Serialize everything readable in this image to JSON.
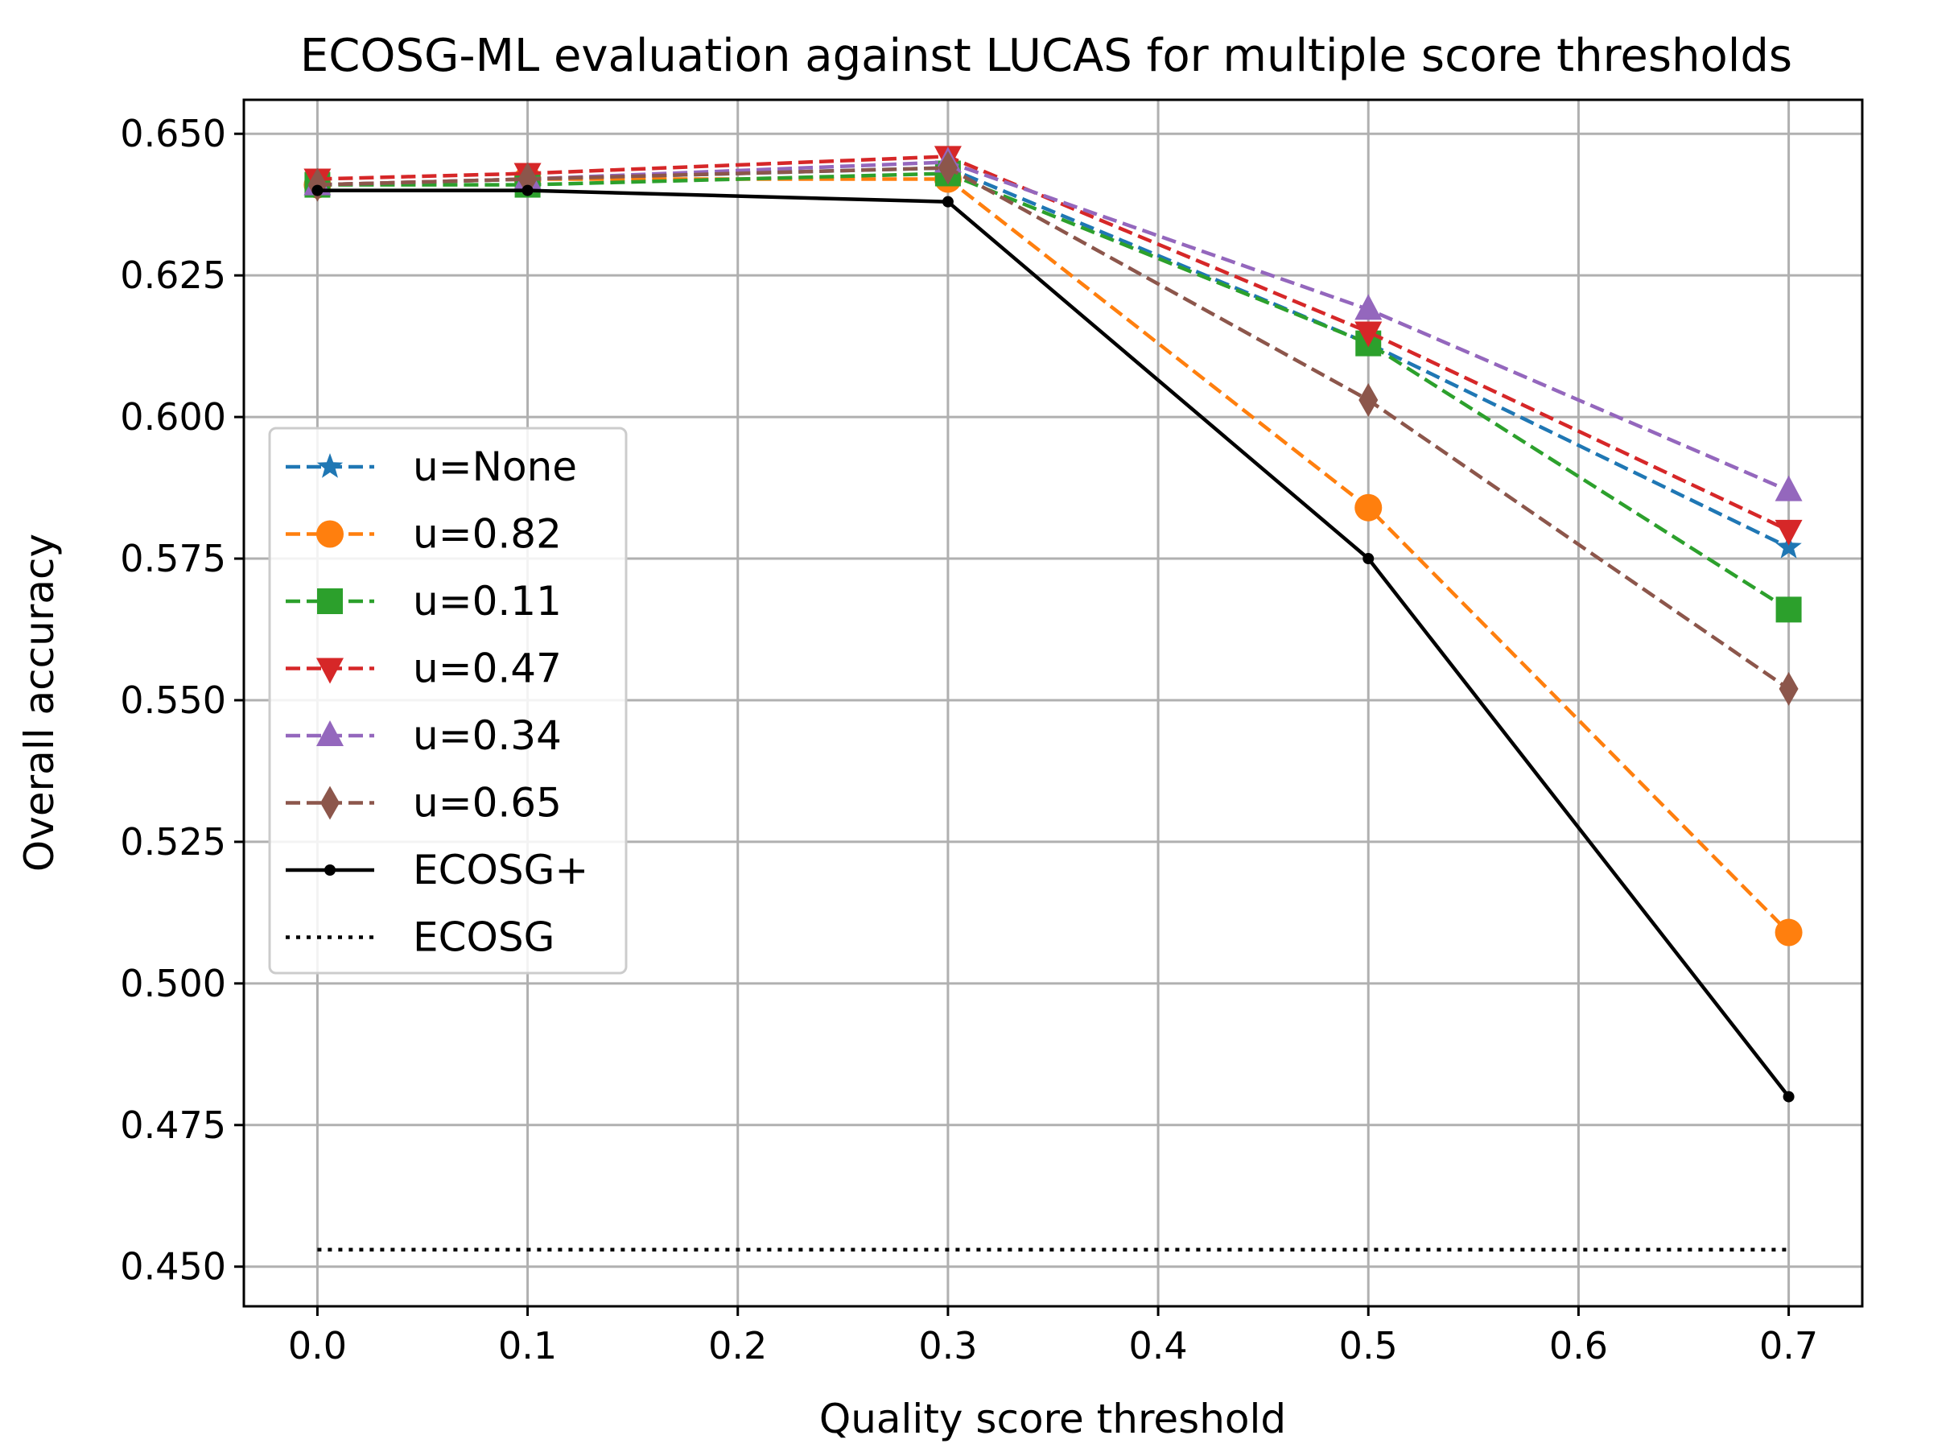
{
  "chart_data": {
    "type": "line",
    "title": "ECOSG-ML evaluation against LUCAS for multiple score thresholds",
    "xlabel": "Quality score threshold",
    "ylabel": "Overall accuracy",
    "xlim": [
      -0.035,
      0.735
    ],
    "ylim": [
      0.443,
      0.656
    ],
    "xticks": [
      "0.0",
      "0.1",
      "0.2",
      "0.3",
      "0.4",
      "0.5",
      "0.6",
      "0.7"
    ],
    "yticks": [
      "0.450",
      "0.475",
      "0.500",
      "0.525",
      "0.550",
      "0.575",
      "0.600",
      "0.625",
      "0.650"
    ],
    "grid": true,
    "legend_position": "center-left",
    "x": [
      0.0,
      0.1,
      0.3,
      0.5,
      0.7
    ],
    "series": [
      {
        "name": "u=None",
        "color": "#1f77b4",
        "style": "dashed",
        "marker": "star",
        "values": [
          0.641,
          0.642,
          0.644,
          0.613,
          0.577
        ]
      },
      {
        "name": "u=0.82",
        "color": "#ff7f0e",
        "style": "dashed",
        "marker": "circle",
        "values": [
          0.641,
          0.642,
          0.642,
          0.584,
          0.509
        ]
      },
      {
        "name": "u=0.11",
        "color": "#2ca02c",
        "style": "dashed",
        "marker": "square",
        "values": [
          0.641,
          0.641,
          0.643,
          0.613,
          0.566
        ]
      },
      {
        "name": "u=0.47",
        "color": "#d62728",
        "style": "dashed",
        "marker": "triangle-down",
        "values": [
          0.642,
          0.643,
          0.646,
          0.615,
          0.58
        ]
      },
      {
        "name": "u=0.34",
        "color": "#9467bd",
        "style": "dashed",
        "marker": "triangle-up",
        "values": [
          0.641,
          0.642,
          0.645,
          0.619,
          0.587
        ]
      },
      {
        "name": "u=0.65",
        "color": "#8c564b",
        "style": "dashed",
        "marker": "diamond",
        "values": [
          0.641,
          0.642,
          0.644,
          0.603,
          0.552
        ]
      },
      {
        "name": "ECOSG+",
        "color": "#000000",
        "style": "solid",
        "marker": "dot",
        "values": [
          0.64,
          0.64,
          0.638,
          0.575,
          0.48
        ]
      },
      {
        "name": "ECOSG",
        "color": "#000000",
        "style": "dotted",
        "marker": "none",
        "values": [
          0.453,
          0.453,
          0.453,
          0.453,
          0.453
        ]
      }
    ]
  }
}
